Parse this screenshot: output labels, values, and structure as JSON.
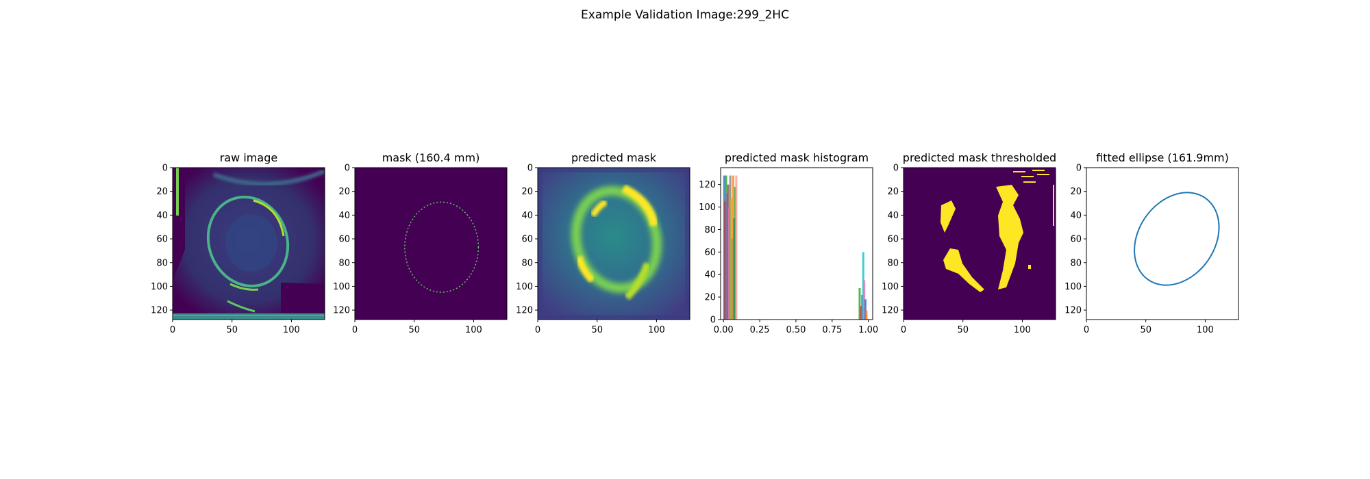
{
  "figure": {
    "suptitle": "Example Validation Image:299_2HC"
  },
  "colors": {
    "viridis_dark": "#440154",
    "viridis_yellow": "#fde725",
    "ellipse_line": "#1f77b4",
    "axis": "#000000"
  },
  "chart_data": [
    {
      "type": "heatmap",
      "title": "raw image",
      "xlim": [
        0,
        128
      ],
      "ylim": [
        128,
        0
      ],
      "xticks": [
        0,
        50,
        100
      ],
      "yticks": [
        0,
        20,
        40,
        60,
        80,
        100,
        120
      ],
      "colormap": "viridis",
      "content": "fetal head ultrasound"
    },
    {
      "type": "heatmap",
      "title": "mask (160.4 mm)",
      "xlim": [
        0,
        128
      ],
      "ylim": [
        128,
        0
      ],
      "xticks": [
        0,
        50,
        100
      ],
      "yticks": [
        0,
        20,
        40,
        60,
        80,
        100,
        120
      ],
      "colormap": "viridis",
      "content": "dashed ellipse outline",
      "ellipse": {
        "cx": 73,
        "cy": 67,
        "rx": 31,
        "ry": 38
      }
    },
    {
      "type": "heatmap",
      "title": "predicted mask",
      "xlim": [
        0,
        128
      ],
      "ylim": [
        128,
        0
      ],
      "xticks": [
        0,
        50,
        100
      ],
      "yticks": [
        0,
        20,
        40,
        60,
        80,
        100,
        120
      ],
      "colormap": "viridis"
    },
    {
      "type": "bar",
      "title": "predicted mask histogram",
      "xlim": [
        -0.02,
        1.03
      ],
      "ylim": [
        0,
        135
      ],
      "xticks": [
        "0.00",
        "0.25",
        "0.50",
        "0.75",
        "1.00"
      ],
      "yticks": [
        0,
        20,
        40,
        60,
        80,
        100,
        120
      ],
      "bars": [
        {
          "x": 0.005,
          "value": 128,
          "color": "#1f77b4"
        },
        {
          "x": 0.012,
          "value": 105,
          "color": "#d62728"
        },
        {
          "x": 0.018,
          "value": 128,
          "color": "#2ca02c"
        },
        {
          "x": 0.025,
          "value": 112,
          "color": "#9467bd"
        },
        {
          "x": 0.032,
          "value": 120,
          "color": "#8c564b"
        },
        {
          "x": 0.04,
          "value": 100,
          "color": "#e377c2"
        },
        {
          "x": 0.047,
          "value": 128,
          "color": "#7f7f7f"
        },
        {
          "x": 0.054,
          "value": 108,
          "color": "#bcbd22"
        },
        {
          "x": 0.06,
          "value": 72,
          "color": "#17becf"
        },
        {
          "x": 0.067,
          "value": 128,
          "color": "#ff7f0e"
        },
        {
          "x": 0.074,
          "value": 90,
          "color": "#1f77b4"
        },
        {
          "x": 0.081,
          "value": 118,
          "color": "#2ca02c"
        },
        {
          "x": 0.088,
          "value": 128,
          "color": "#ff9896"
        },
        {
          "x": 0.94,
          "value": 28,
          "color": "#2ca02c"
        },
        {
          "x": 0.95,
          "value": 12,
          "color": "#d62728"
        },
        {
          "x": 0.957,
          "value": 22,
          "color": "#9467bd"
        },
        {
          "x": 0.965,
          "value": 60,
          "color": "#17becf"
        },
        {
          "x": 0.972,
          "value": 35,
          "color": "#e377c2"
        },
        {
          "x": 0.98,
          "value": 18,
          "color": "#1f77b4"
        },
        {
          "x": 0.987,
          "value": 8,
          "color": "#ff7f0e"
        }
      ]
    },
    {
      "type": "heatmap",
      "title": "predicted mask thresholded",
      "xlim": [
        0,
        128
      ],
      "ylim": [
        128,
        0
      ],
      "xticks": [
        0,
        50,
        100
      ],
      "yticks": [
        0,
        20,
        40,
        60,
        80,
        100,
        120
      ],
      "colormap": "viridis-binary"
    },
    {
      "type": "line",
      "title": "fitted ellipse (161.9mm)",
      "xlim": [
        0,
        128
      ],
      "ylim": [
        128,
        0
      ],
      "xticks": [
        0,
        50,
        100
      ],
      "yticks": [
        0,
        20,
        40,
        60,
        80,
        100,
        120
      ],
      "ellipse": {
        "cx": 76,
        "cy": 60,
        "rx": 32,
        "ry": 42,
        "angle_deg": 35
      }
    }
  ]
}
